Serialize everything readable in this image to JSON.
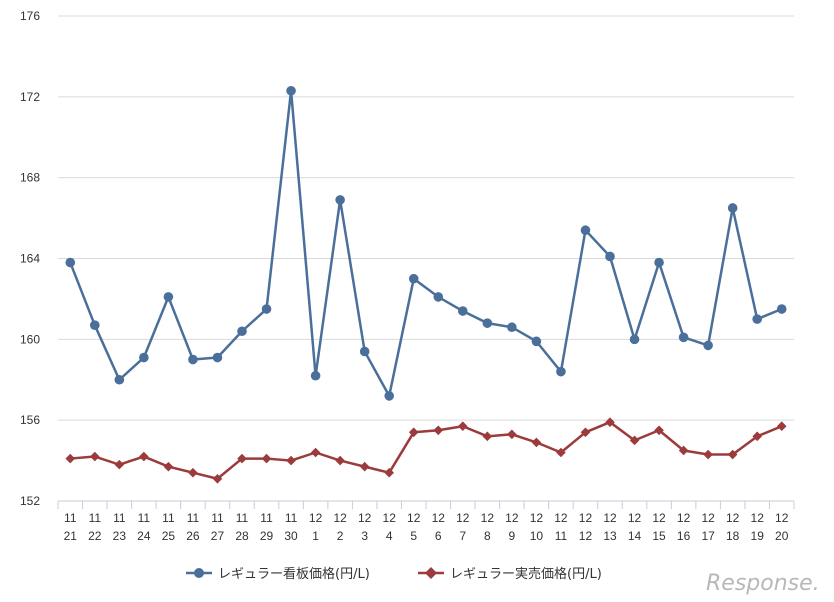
{
  "chart_data": {
    "type": "line",
    "title": "",
    "xlabel": "",
    "ylabel": "",
    "ylim": [
      152,
      176
    ],
    "yticks": [
      152,
      156,
      160,
      164,
      168,
      172,
      176
    ],
    "grid": "horizontal",
    "legend_position": "bottom",
    "categories": [
      {
        "month": "11",
        "day": "21"
      },
      {
        "month": "11",
        "day": "22"
      },
      {
        "month": "11",
        "day": "23"
      },
      {
        "month": "11",
        "day": "24"
      },
      {
        "month": "11",
        "day": "25"
      },
      {
        "month": "11",
        "day": "26"
      },
      {
        "month": "11",
        "day": "27"
      },
      {
        "month": "11",
        "day": "28"
      },
      {
        "month": "11",
        "day": "29"
      },
      {
        "month": "11",
        "day": "30"
      },
      {
        "month": "12",
        "day": "1"
      },
      {
        "month": "12",
        "day": "2"
      },
      {
        "month": "12",
        "day": "3"
      },
      {
        "month": "12",
        "day": "4"
      },
      {
        "month": "12",
        "day": "5"
      },
      {
        "month": "12",
        "day": "6"
      },
      {
        "month": "12",
        "day": "7"
      },
      {
        "month": "12",
        "day": "8"
      },
      {
        "month": "12",
        "day": "9"
      },
      {
        "month": "12",
        "day": "10"
      },
      {
        "month": "12",
        "day": "11"
      },
      {
        "month": "12",
        "day": "12"
      },
      {
        "month": "12",
        "day": "13"
      },
      {
        "month": "12",
        "day": "14"
      },
      {
        "month": "12",
        "day": "15"
      },
      {
        "month": "12",
        "day": "16"
      },
      {
        "month": "12",
        "day": "17"
      },
      {
        "month": "12",
        "day": "18"
      },
      {
        "month": "12",
        "day": "19"
      },
      {
        "month": "12",
        "day": "20"
      }
    ],
    "series": [
      {
        "name": "レギュラー看板価格(円/L)",
        "color": "#4a6f9a",
        "marker": "circle",
        "values": [
          163.8,
          160.7,
          158.0,
          159.1,
          162.1,
          159.0,
          159.1,
          160.4,
          161.5,
          172.3,
          158.2,
          166.9,
          159.4,
          157.2,
          163.0,
          162.1,
          161.4,
          160.8,
          160.6,
          159.9,
          158.4,
          165.4,
          164.1,
          160.0,
          163.8,
          160.1,
          159.7,
          166.5,
          161.0,
          161.5
        ]
      },
      {
        "name": "レギュラー実売価格(円/L)",
        "color": "#9b3b3b",
        "marker": "diamond",
        "values": [
          154.1,
          154.2,
          153.8,
          154.2,
          153.7,
          153.4,
          153.1,
          154.1,
          154.1,
          154.0,
          154.4,
          154.0,
          153.7,
          153.4,
          155.4,
          155.5,
          155.7,
          155.2,
          155.3,
          154.9,
          154.4,
          155.4,
          155.9,
          155.0,
          155.5,
          154.5,
          154.3,
          154.3,
          155.2,
          155.7
        ]
      }
    ]
  },
  "watermark": "Response."
}
